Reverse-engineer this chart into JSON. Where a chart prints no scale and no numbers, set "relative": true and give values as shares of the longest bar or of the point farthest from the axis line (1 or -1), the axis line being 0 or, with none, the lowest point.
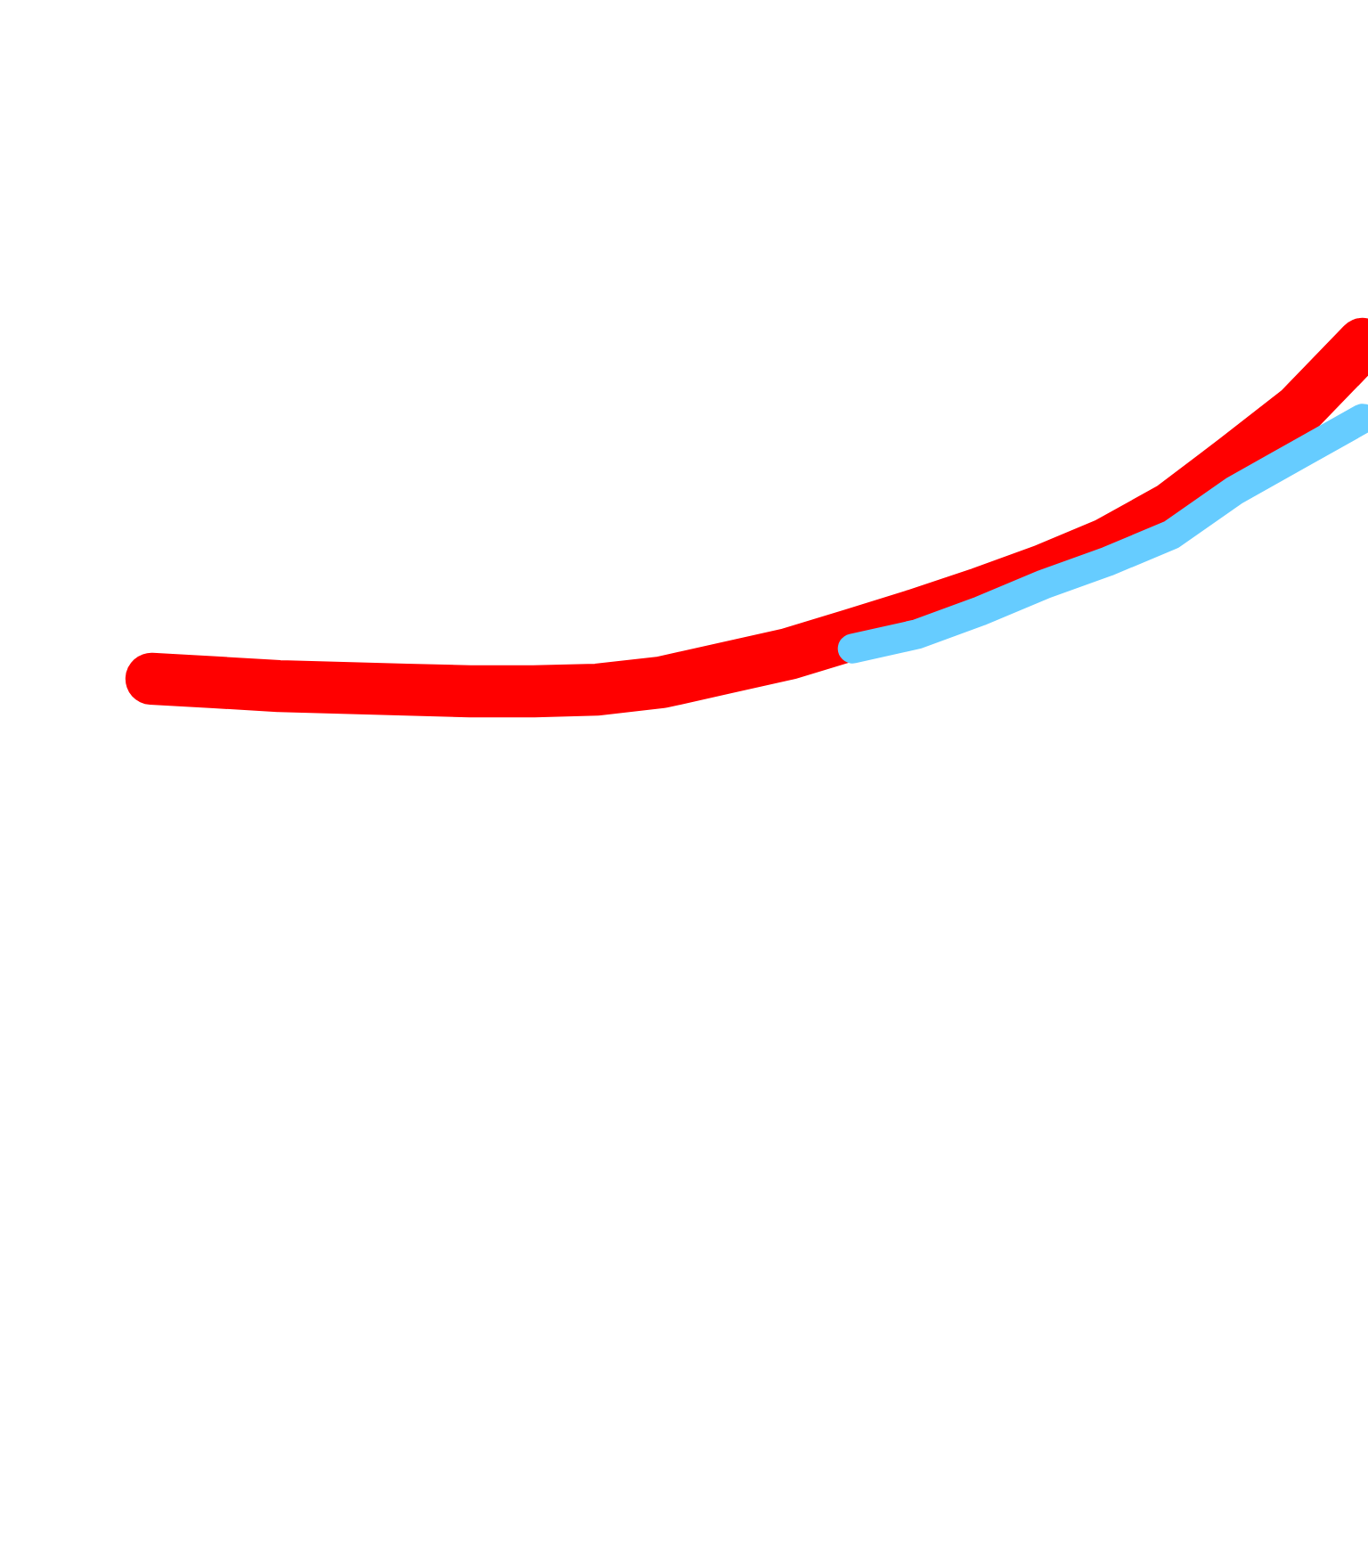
{
  "chart_data": {
    "type": "line",
    "relative": true,
    "categories": [
      null,
      null,
      null,
      null,
      null,
      null,
      null,
      null,
      null,
      null,
      null,
      null,
      null,
      null,
      null,
      null,
      null,
      null,
      null,
      null
    ],
    "series": [
      {
        "color": "#ff0000",
        "values": [
          0.036,
          0.026,
          0.015,
          0.01,
          0.005,
          0,
          0,
          0.005,
          0.026,
          0.067,
          0.108,
          0.164,
          0.221,
          0.282,
          0.349,
          0.426,
          0.528,
          0.667,
          0.81,
          1
        ]
      },
      {
        "color": "#66ccff",
        "values": [
          null,
          null,
          null,
          null,
          null,
          null,
          null,
          null,
          null,
          null,
          null,
          0.123,
          0.164,
          0.231,
          0.308,
          0.374,
          0.451,
          0.579,
          0.682,
          0.785
        ]
      }
    ]
  }
}
